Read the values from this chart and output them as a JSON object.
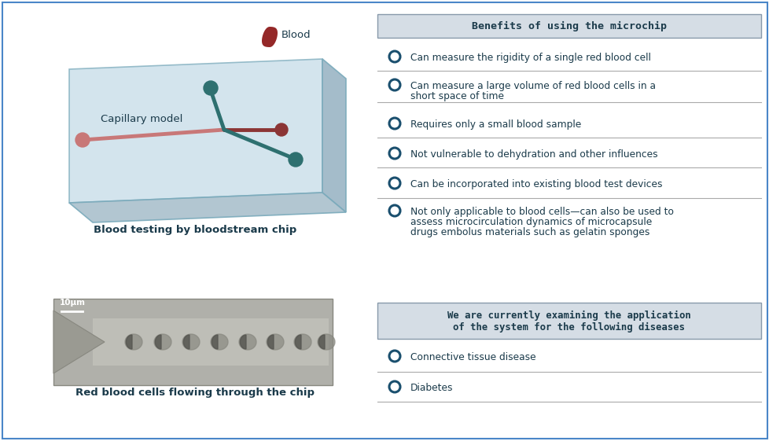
{
  "bg_color": "#ffffff",
  "border_color": "#4a86c8",
  "text_color_dark": "#1a3a4a",
  "bullet_color": "#1a4f6e",
  "divider_color": "#aaaaaa",
  "header_bg": "#d5dde5",
  "header_border": "#8899aa",
  "title1": "Benefits of using the microchip",
  "title2_line1": "We are currently examining the application",
  "title2_line2": "of the system for the following diseases",
  "benefits": [
    "Can measure the rigidity of a single red blood cell",
    "Can measure a large volume of red blood cells in a\nshort space of time",
    "Requires only a small blood sample",
    "Not vulnerable to dehydration and other influences",
    "Can be incorporated into existing blood test devices",
    "Not only applicable to blood cells—can also be used to\nassess microcirculation dynamics of microcapsule\ndrugs embolus materials such as gelatin sponges"
  ],
  "diseases": [
    "Connective tissue disease",
    "Diabetes"
  ],
  "left_caption1": "Blood testing by bloodstream chip",
  "left_caption2": "Red blood cells flowing through the chip",
  "blood_label": "Blood",
  "capillary_label": "Capillary model",
  "scale_label": "10μm",
  "chip_top_color": "#c5dce8",
  "chip_right_color": "#9ab5c5",
  "chip_bottom_color": "#aac0cc",
  "chip_edge_color": "#7aaabb",
  "channel_pink": "#c87878",
  "channel_red": "#8b3535",
  "channel_teal": "#2e7070",
  "drop_color": "#8b1515",
  "photo_bg": "#b0b0aa",
  "photo_edge": "#888880",
  "cell_color": "#707068",
  "cell_outline": "#505050"
}
